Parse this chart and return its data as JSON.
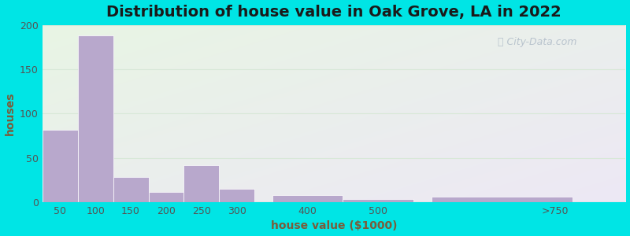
{
  "title": "Distribution of house value in Oak Grove, LA in 2022",
  "xlabel": "house value ($1000)",
  "ylabel": "houses",
  "tick_labels": [
    "50",
    "100",
    "150",
    "200",
    "250",
    "300",
    "400",
    "500",
    ">750"
  ],
  "bar_lefts": [
    25,
    75,
    125,
    175,
    225,
    275,
    350,
    450,
    575
  ],
  "bar_widths": [
    50,
    50,
    50,
    50,
    50,
    50,
    100,
    100,
    200
  ],
  "values": [
    82,
    188,
    28,
    12,
    42,
    15,
    8,
    4,
    6
  ],
  "tick_positions": [
    50,
    100,
    150,
    200,
    250,
    300,
    400,
    500,
    750
  ],
  "xlim": [
    25,
    850
  ],
  "bar_color": "#b8a8cc",
  "background_outer": "#00e5e5",
  "background_top_left": "#e8f5e4",
  "background_bottom_right": "#ede8f5",
  "grid_color": "#d8e8d8",
  "ylim": [
    0,
    200
  ],
  "yticks": [
    0,
    50,
    100,
    150,
    200
  ],
  "title_fontsize": 14,
  "axis_label_fontsize": 10,
  "tick_fontsize": 9,
  "title_color": "#1a1a1a",
  "label_color": "#7a5c3a",
  "watermark_text": "City-Data.com",
  "watermark_color": "#b0bcc8"
}
